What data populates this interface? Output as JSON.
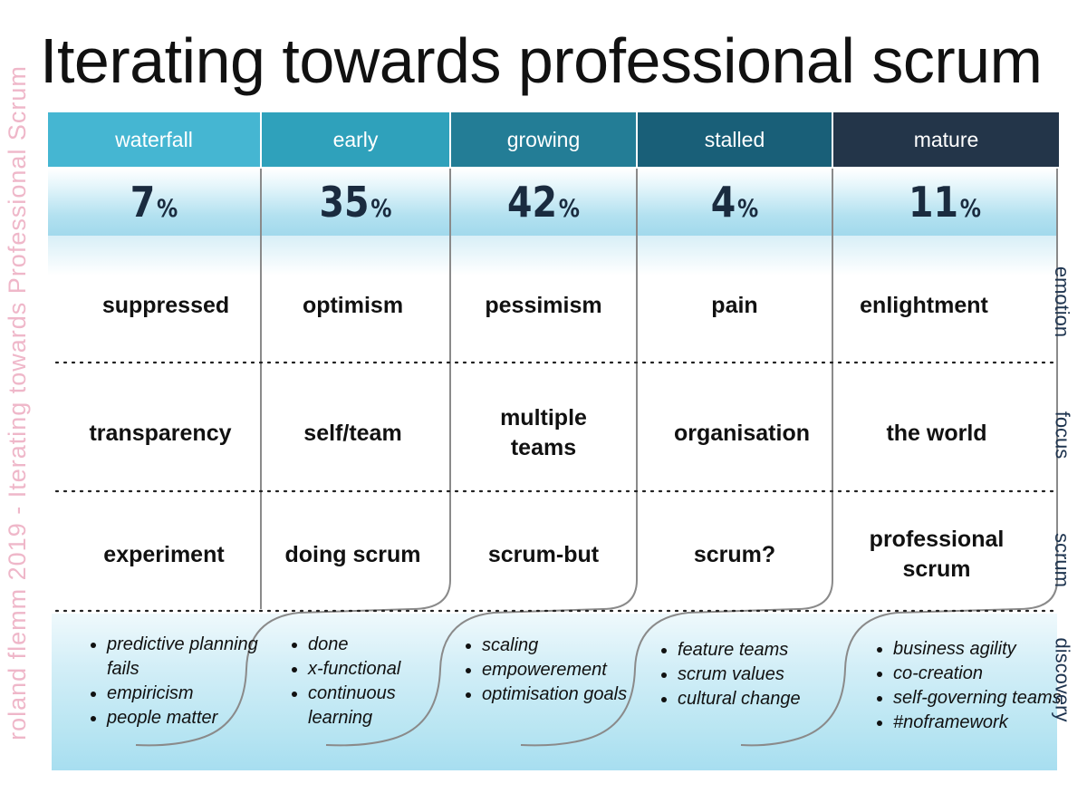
{
  "side_caption": "roland flemm   2019  -  Iterating towards Professional Scrum",
  "title": "Iterating towards professional scrum",
  "colors": {
    "waterfall": "#45b6d2",
    "early": "#2fa1bb",
    "growing": "#237d96",
    "stalled": "#195f78",
    "mature": "#233549",
    "side_caption": "#efb7c9",
    "percent_text": "#1a2b3f"
  },
  "stages": [
    {
      "name": "waterfall",
      "percent": "7",
      "emotion": "suppressed",
      "focus": "transparency",
      "scrum": "experiment",
      "discovery": [
        "predictive planning fails",
        "empiricism",
        "people matter"
      ]
    },
    {
      "name": "early",
      "percent": "35",
      "emotion": "optimism",
      "focus": "self/team",
      "scrum": "doing scrum",
      "discovery": [
        "done",
        "x-functional",
        "continuous learning"
      ]
    },
    {
      "name": "growing",
      "percent": "42",
      "emotion": "pessimism",
      "focus": "multiple teams",
      "scrum": "scrum-but",
      "discovery": [
        "scaling",
        "empowerement",
        "optimisation goals"
      ]
    },
    {
      "name": "stalled",
      "percent": "4",
      "emotion": "pain",
      "focus": "organisation",
      "scrum": "scrum?",
      "discovery": [
        "feature teams",
        "scrum values",
        "cultural change"
      ]
    },
    {
      "name": "mature",
      "percent": "11",
      "emotion": "enlightment",
      "focus": "the world",
      "scrum": "professional scrum",
      "discovery": [
        "business agility",
        "co-creation",
        "self-governing teams",
        "#noframework"
      ]
    }
  ],
  "percent_sign": "%",
  "row_labels": {
    "emotion": "emotion",
    "focus": "focus",
    "scrum": "scrum",
    "discovery": "discovery"
  }
}
